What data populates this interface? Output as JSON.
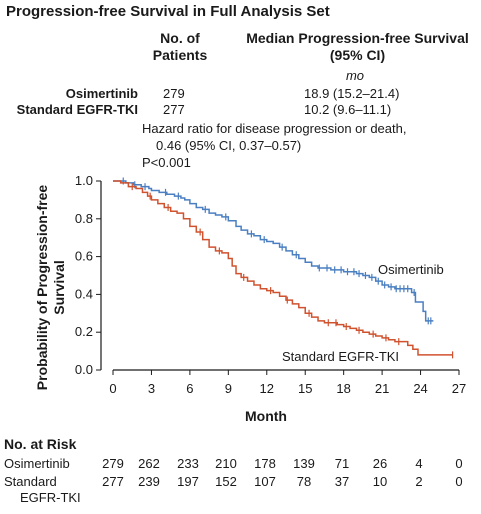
{
  "title": "Progression-free Survival in Full Analysis Set",
  "table_header": {
    "patients": [
      "No. of",
      "Patients"
    ],
    "median": [
      "Median Progression-free Survival",
      "(95% CI)"
    ],
    "unit": "mo"
  },
  "groups": [
    {
      "name": "Osimertinib",
      "patients": "279",
      "median": "18.9 (15.2–21.4)"
    },
    {
      "name": "Standard EGFR-TKI",
      "patients": "277",
      "median": "10.2 (9.6–11.1)"
    }
  ],
  "hazard_text": [
    "Hazard ratio for disease progression or death,",
    "0.46 (95% CI, 0.37–0.57)",
    "P<0.001"
  ],
  "colors": {
    "osimertinib": "#4a7fc1",
    "standard": "#d0522e",
    "axis": "#1a1a1a"
  },
  "chart_data": {
    "type": "line",
    "xlabel": "Month",
    "ylabel": [
      "Probability of Progression-free",
      "Survival"
    ],
    "xlim": [
      0,
      27
    ],
    "ylim": [
      0,
      1.0
    ],
    "x_ticks": [
      0,
      3,
      6,
      9,
      12,
      15,
      18,
      21,
      24,
      27
    ],
    "y_ticks": [
      "0.0",
      "0.2",
      "0.4",
      "0.6",
      "0.8",
      "1.0"
    ],
    "series": [
      {
        "name": "Osimertinib",
        "color": "#4a7fc1",
        "label_position": "right",
        "points": [
          [
            0,
            1.0
          ],
          [
            0.5,
            1.0
          ],
          [
            1,
            0.99
          ],
          [
            1.6,
            0.98
          ],
          [
            2.2,
            0.97
          ],
          [
            2.8,
            0.96
          ],
          [
            3,
            0.95
          ],
          [
            3.6,
            0.94
          ],
          [
            4.2,
            0.93
          ],
          [
            4.8,
            0.92
          ],
          [
            5.3,
            0.91
          ],
          [
            5.6,
            0.9
          ],
          [
            6,
            0.88
          ],
          [
            6.5,
            0.86
          ],
          [
            7,
            0.85
          ],
          [
            7.5,
            0.83
          ],
          [
            8,
            0.82
          ],
          [
            8.5,
            0.81
          ],
          [
            9,
            0.79
          ],
          [
            9.6,
            0.76
          ],
          [
            10,
            0.74
          ],
          [
            10.5,
            0.72
          ],
          [
            11,
            0.71
          ],
          [
            11.5,
            0.69
          ],
          [
            12,
            0.68
          ],
          [
            12.5,
            0.67
          ],
          [
            13,
            0.65
          ],
          [
            13.5,
            0.63
          ],
          [
            14,
            0.61
          ],
          [
            14.5,
            0.59
          ],
          [
            15,
            0.57
          ],
          [
            15.5,
            0.55
          ],
          [
            16,
            0.54
          ],
          [
            16.5,
            0.54
          ],
          [
            17,
            0.53
          ],
          [
            17.5,
            0.53
          ],
          [
            18,
            0.52
          ],
          [
            18.5,
            0.52
          ],
          [
            19,
            0.51
          ],
          [
            19.5,
            0.5
          ],
          [
            20,
            0.49
          ],
          [
            20.5,
            0.47
          ],
          [
            21,
            0.45
          ],
          [
            21.5,
            0.44
          ],
          [
            22,
            0.43
          ],
          [
            22.5,
            0.43
          ],
          [
            23,
            0.43
          ],
          [
            23.3,
            0.41
          ],
          [
            23.6,
            0.36
          ],
          [
            24,
            0.36
          ],
          [
            24.2,
            0.31
          ],
          [
            24.4,
            0.26
          ],
          [
            25,
            0.26
          ]
        ],
        "censor": [
          0.8,
          1.7,
          2.5,
          4.1,
          5.1,
          7.2,
          8.8,
          10.8,
          11.8,
          13.2,
          14.3,
          16.1,
          16.7,
          17.3,
          17.8,
          18.3,
          18.8,
          19.2,
          19.7,
          20.2,
          20.7,
          21.2,
          21.7,
          22.1,
          22.4,
          22.7,
          23.0,
          23.5,
          24.6,
          24.8
        ]
      },
      {
        "name": "Standard EGFR-TKI",
        "color": "#d0522e",
        "label_position": "right",
        "points": [
          [
            0,
            1.0
          ],
          [
            0.6,
            0.99
          ],
          [
            1.2,
            0.97
          ],
          [
            1.8,
            0.96
          ],
          [
            2.3,
            0.94
          ],
          [
            2.7,
            0.92
          ],
          [
            3,
            0.9
          ],
          [
            3.5,
            0.88
          ],
          [
            4,
            0.86
          ],
          [
            4.5,
            0.84
          ],
          [
            5,
            0.83
          ],
          [
            5.5,
            0.8
          ],
          [
            6,
            0.76
          ],
          [
            6.5,
            0.73
          ],
          [
            7,
            0.69
          ],
          [
            7.5,
            0.65
          ],
          [
            8,
            0.63
          ],
          [
            8.5,
            0.62
          ],
          [
            9,
            0.59
          ],
          [
            9.3,
            0.55
          ],
          [
            9.6,
            0.51
          ],
          [
            10,
            0.49
          ],
          [
            10.5,
            0.47
          ],
          [
            11,
            0.45
          ],
          [
            11.5,
            0.43
          ],
          [
            12,
            0.42
          ],
          [
            12.5,
            0.41
          ],
          [
            13,
            0.39
          ],
          [
            13.5,
            0.37
          ],
          [
            14,
            0.35
          ],
          [
            14.5,
            0.33
          ],
          [
            15,
            0.3
          ],
          [
            15.5,
            0.28
          ],
          [
            16,
            0.26
          ],
          [
            16.5,
            0.25
          ],
          [
            17,
            0.25
          ],
          [
            17.5,
            0.24
          ],
          [
            18,
            0.23
          ],
          [
            18.5,
            0.22
          ],
          [
            19,
            0.21
          ],
          [
            19.5,
            0.2
          ],
          [
            20,
            0.19
          ],
          [
            20.5,
            0.18
          ],
          [
            21,
            0.17
          ],
          [
            21.5,
            0.16
          ],
          [
            22,
            0.15
          ],
          [
            22.5,
            0.15
          ],
          [
            23,
            0.13
          ],
          [
            23.4,
            0.11
          ],
          [
            23.8,
            0.08
          ],
          [
            26.5,
            0.08
          ]
        ],
        "censor": [
          1.5,
          2.9,
          4.3,
          6.8,
          8.3,
          10.2,
          12.3,
          13.6,
          15.3,
          16.8,
          17.4,
          18.2,
          19.2,
          20.3,
          21.3,
          22.3,
          26.5
        ]
      }
    ]
  },
  "risk_table": {
    "title": "No. at Risk",
    "rows": [
      {
        "label": [
          "Osimertinib"
        ],
        "values": [
          "279",
          "262",
          "233",
          "210",
          "178",
          "139",
          "71",
          "26",
          "4",
          "0"
        ]
      },
      {
        "label": [
          "Standard",
          "EGFR-TKI"
        ],
        "values": [
          "277",
          "239",
          "197",
          "152",
          "107",
          "78",
          "37",
          "10",
          "2",
          "0"
        ]
      }
    ]
  }
}
